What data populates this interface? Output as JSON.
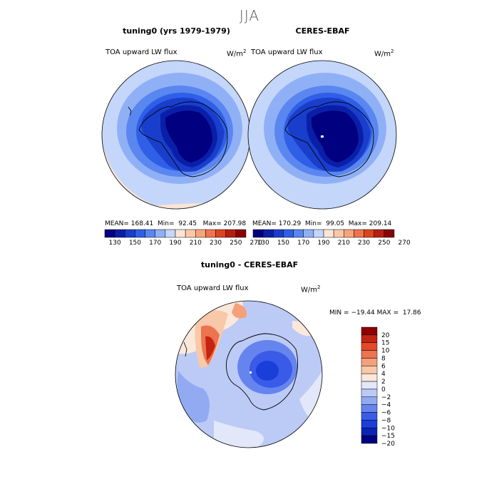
{
  "figure": {
    "season": "JJA",
    "colors": {
      "abs_scale": [
        "#000080",
        "#0a1fa8",
        "#1a3ecc",
        "#2f5fe6",
        "#5a86f0",
        "#90b0f6",
        "#c4d6fa",
        "#fbe4d6",
        "#fac8a8",
        "#f7a47a",
        "#ef744c",
        "#dc4420",
        "#b81e10",
        "#880000"
      ],
      "diff_scale": [
        "#000080",
        "#0a24b4",
        "#1a3ed8",
        "#3a5ae8",
        "#6684ee",
        "#92aaf2",
        "#bccaf6",
        "#e2e8fa",
        "#fce8da",
        "#f8c8a8",
        "#f4a07a",
        "#ec7450",
        "#e24a28",
        "#c42412",
        "#8c0000"
      ]
    },
    "panels": [
      {
        "id": "model",
        "title": "tuning0 (yrs 1979-1979)",
        "variable": "TOA upward LW flux",
        "units": "W/m",
        "units_sup": "2",
        "mean": "168.41",
        "min": "92.45",
        "max": "207.98"
      },
      {
        "id": "obs",
        "title": "CERES-EBAF",
        "variable": "TOA upward LW flux",
        "units": "W/m",
        "units_sup": "2",
        "mean": "170.29",
        "min": "99.05",
        "max": "209.14"
      }
    ],
    "abs_colorbar_labels": [
      "130",
      "150",
      "170",
      "190",
      "210",
      "230",
      "250",
      "270"
    ],
    "diff_panel": {
      "title": "tuning0 - CERES-EBAF",
      "variable": "TOA upward LW flux",
      "units": "W/m",
      "units_sup": "2",
      "min": "−19.44",
      "max": "17.86",
      "colorbar_labels": [
        "20",
        "15",
        "10",
        "8",
        "6",
        "4",
        "2",
        "0",
        "−2",
        "−4",
        "−6",
        "−8",
        "−10",
        "−15",
        "−20"
      ]
    },
    "stat_labels": {
      "mean": "MEAN=",
      "min": "Min=",
      "max": "Max=",
      "min_upper": "MIN =",
      "max_upper": "MAX ="
    }
  }
}
